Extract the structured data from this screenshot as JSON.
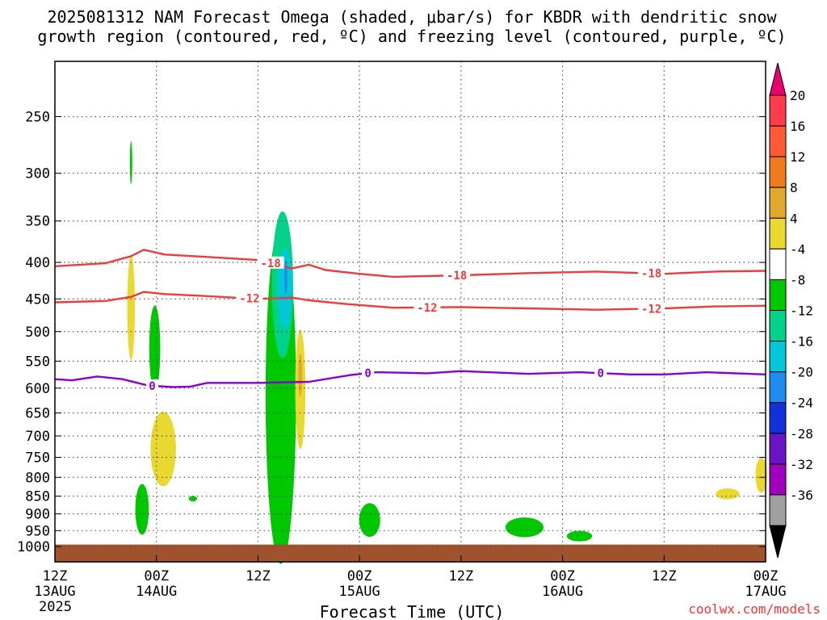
{
  "chart_data": {
    "type": "time-height contour",
    "title_line1": "2025081312 NAM Forecast Omega (shaded, μbar/s) for KBDR with dendritic snow",
    "title_line2": "growth region (contoured, red, ºC) and freezing level (contoured, purple, ºC)",
    "xlabel": "Forecast Time (UTC)",
    "credit": "coolwx.com/models",
    "x_ticks": [
      {
        "top": "12Z",
        "bottom": "13AUG",
        "extra": "2025"
      },
      {
        "top": "00Z",
        "bottom": "14AUG"
      },
      {
        "top": "12Z",
        "bottom": ""
      },
      {
        "top": "00Z",
        "bottom": "15AUG"
      },
      {
        "top": "12Z",
        "bottom": ""
      },
      {
        "top": "00Z",
        "bottom": "16AUG"
      },
      {
        "top": "12Z",
        "bottom": ""
      },
      {
        "top": "00Z",
        "bottom": "17AUG"
      }
    ],
    "x_range_hours": [
      0,
      84
    ],
    "y_ticks_hpa": [
      250,
      300,
      350,
      400,
      450,
      500,
      550,
      600,
      650,
      700,
      750,
      800,
      850,
      900,
      950,
      1000
    ],
    "y_range_hpa": [
      200,
      1030
    ],
    "grid": true,
    "colorbar": {
      "labels": [
        "20",
        "16",
        "12",
        "8",
        "4",
        "-4",
        "-8",
        "-12",
        "-16",
        "-20",
        "-24",
        "-28",
        "-32",
        "-36"
      ],
      "bins": [
        {
          "color": "#ff3c4c"
        },
        {
          "color": "#ff5a36"
        },
        {
          "color": "#f07a1c"
        },
        {
          "color": "#e0a82c"
        },
        {
          "color": "#e8d830"
        },
        {
          "color": "#ffffff"
        },
        {
          "color": "#00c800"
        },
        {
          "color": "#00d28c"
        },
        {
          "color": "#00c8d8"
        },
        {
          "color": "#1e8cf0"
        },
        {
          "color": "#1430d8"
        },
        {
          "color": "#6a14c8"
        },
        {
          "color": "#a000c0"
        },
        {
          "color": "#a0a0a0"
        }
      ],
      "top_color": "#e8006e",
      "bottom_color": "#000000"
    },
    "contours": [
      {
        "label": "-18",
        "color": "#ee3b3b",
        "points": [
          [
            0,
            405
          ],
          [
            6,
            401
          ],
          [
            9,
            392
          ],
          [
            10.5,
            384
          ],
          [
            13,
            390
          ],
          [
            18,
            393
          ],
          [
            24,
            397
          ],
          [
            26,
            402
          ],
          [
            28,
            408
          ],
          [
            30,
            403
          ],
          [
            32,
            410
          ],
          [
            36,
            415
          ],
          [
            40,
            419
          ],
          [
            48,
            417
          ],
          [
            56,
            414
          ],
          [
            64,
            412
          ],
          [
            72,
            415
          ],
          [
            78,
            412
          ],
          [
            84,
            411
          ]
        ],
        "label_hours": [
          25.5,
          47.5,
          70.5
        ]
      },
      {
        "label": "-12",
        "color": "#ee3b3b",
        "points": [
          [
            0,
            455
          ],
          [
            6,
            453
          ],
          [
            9,
            447
          ],
          [
            10.5,
            440
          ],
          [
            13,
            443
          ],
          [
            18,
            446
          ],
          [
            24,
            450
          ],
          [
            28,
            448
          ],
          [
            30,
            452
          ],
          [
            34,
            457
          ],
          [
            40,
            463
          ],
          [
            48,
            462
          ],
          [
            56,
            464
          ],
          [
            64,
            466
          ],
          [
            72,
            464
          ],
          [
            78,
            461
          ],
          [
            84,
            460
          ]
        ],
        "label_hours": [
          23,
          44,
          70.5
        ]
      },
      {
        "label": "0",
        "color": "#8b00d0",
        "points": [
          [
            0,
            583
          ],
          [
            2,
            585
          ],
          [
            5,
            578
          ],
          [
            8,
            583
          ],
          [
            11,
            595
          ],
          [
            14,
            598
          ],
          [
            16,
            597
          ],
          [
            18,
            590
          ],
          [
            24,
            590
          ],
          [
            30,
            588
          ],
          [
            35,
            575
          ],
          [
            38,
            570
          ],
          [
            44,
            572
          ],
          [
            48,
            568
          ],
          [
            56,
            573
          ],
          [
            62,
            570
          ],
          [
            68,
            574
          ],
          [
            72,
            574
          ],
          [
            77,
            570
          ],
          [
            84,
            574
          ]
        ],
        "label_hours": [
          11.5,
          37,
          64.5
        ]
      }
    ],
    "omega_shading": [
      {
        "color": "#00c800",
        "center": [
          9.0,
          290
        ],
        "width_h": 0.25,
        "height_hpa": 40
      },
      {
        "color": "#e8d830",
        "center": [
          9.0,
          463
        ],
        "width_h": 0.9,
        "height_hpa": 155
      },
      {
        "color": "#00c800",
        "center": [
          11.8,
          528
        ],
        "width_h": 1.3,
        "height_hpa": 145
      },
      {
        "color": "#e8d830",
        "center": [
          12.8,
          730
        ],
        "width_h": 3.0,
        "height_hpa": 175
      },
      {
        "color": "#00c800",
        "center": [
          10.3,
          887
        ],
        "width_h": 1.6,
        "height_hpa": 145
      },
      {
        "color": "#00c800",
        "center": [
          16.3,
          857
        ],
        "width_h": 1.0,
        "height_hpa": 15
      },
      {
        "color": "#00c800",
        "center": [
          26.7,
          612
        ],
        "width_h": 3.6,
        "height_hpa": 610
      },
      {
        "color": "#00d28c",
        "center": [
          26.9,
          430
        ],
        "width_h": 2.5,
        "height_hpa": 200
      },
      {
        "color": "#00c8d8",
        "center": [
          27.2,
          435
        ],
        "width_h": 1.7,
        "height_hpa": 110
      },
      {
        "color": "#1e8cf0",
        "center": [
          27.3,
          420
        ],
        "width_h": 0.35,
        "height_hpa": 45
      },
      {
        "color": "#e8d830",
        "center": [
          29.0,
          602
        ],
        "width_h": 1.2,
        "height_hpa": 230
      },
      {
        "color": "#e0a82c",
        "center": [
          29.0,
          575
        ],
        "width_h": 0.45,
        "height_hpa": 80
      },
      {
        "color": "#00c800",
        "center": [
          37.2,
          918
        ],
        "width_h": 2.5,
        "height_hpa": 100
      },
      {
        "color": "#00c800",
        "center": [
          55.5,
          940
        ],
        "width_h": 4.5,
        "height_hpa": 60
      },
      {
        "color": "#00c800",
        "center": [
          62.0,
          967
        ],
        "width_h": 3.0,
        "height_hpa": 33
      },
      {
        "color": "#e8d830",
        "center": [
          79.5,
          844
        ],
        "width_h": 2.8,
        "height_hpa": 30
      },
      {
        "color": "#e8d830",
        "center": [
          83.5,
          795
        ],
        "width_h": 1.4,
        "height_hpa": 90
      }
    ],
    "surface_color": "#a0522d",
    "surface_hpa": 1012
  }
}
